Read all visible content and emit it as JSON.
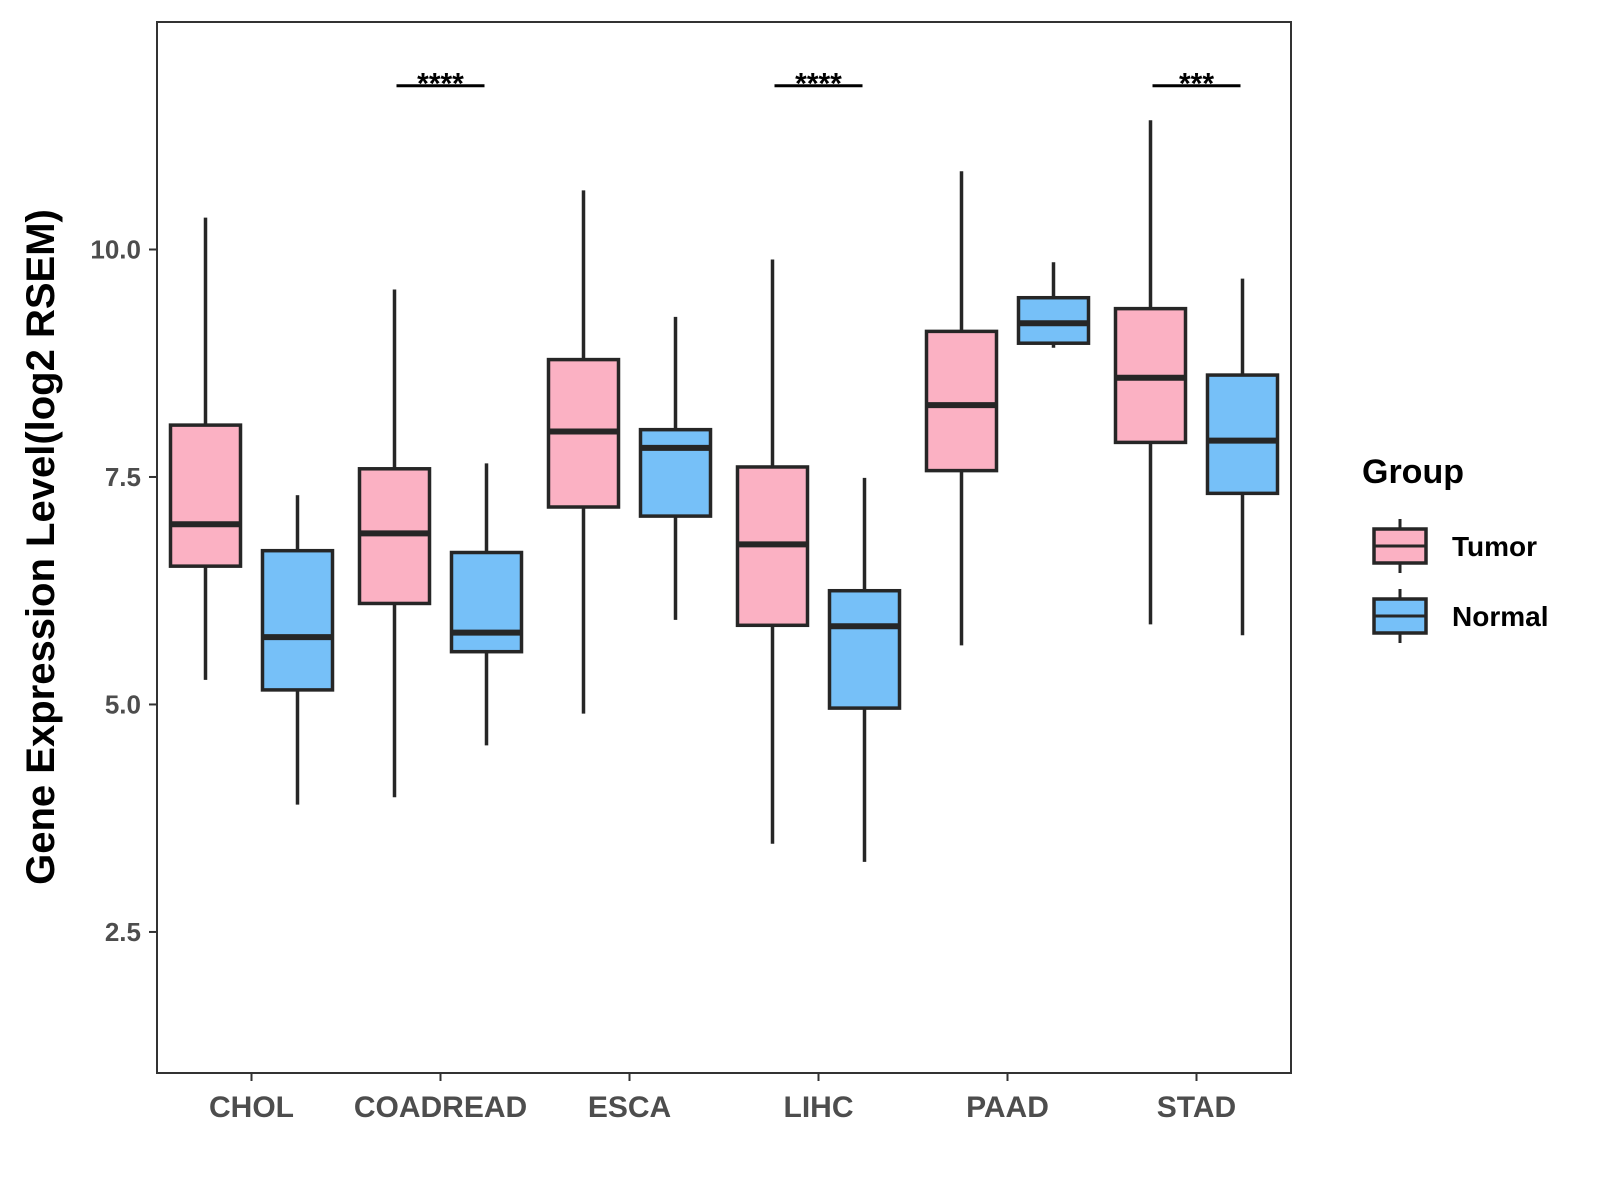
{
  "chart_data": {
    "type": "boxplot",
    "title": "",
    "xlabel": "",
    "ylabel": "Gene Expression Level(log2 RSEM)",
    "ylim": [
      0.95,
      12.5
    ],
    "yticks": [
      2.5,
      5.0,
      7.5,
      10.0
    ],
    "ytick_labels": [
      "2.5",
      "5.0",
      "7.5",
      "10.0"
    ],
    "categories": [
      "CHOL",
      "COADREAD",
      "ESCA",
      "LIHC",
      "PAAD",
      "STAD"
    ],
    "legend": {
      "title": "Group",
      "position": "right",
      "entries": [
        {
          "name": "Tumor",
          "color": "#fbb1c3"
        },
        {
          "name": "Normal",
          "color": "#76c0f8"
        }
      ]
    },
    "series": [
      {
        "name": "Tumor",
        "color": "#fbb1c3",
        "boxes": [
          {
            "category": "CHOL",
            "min": 5.27,
            "q1": 6.52,
            "median": 6.98,
            "q3": 8.07,
            "max": 10.35
          },
          {
            "category": "COADREAD",
            "min": 3.98,
            "q1": 6.11,
            "median": 6.88,
            "q3": 7.59,
            "max": 9.56
          },
          {
            "category": "ESCA",
            "min": 4.9,
            "q1": 7.17,
            "median": 8.0,
            "q3": 8.79,
            "max": 10.65
          },
          {
            "category": "LIHC",
            "min": 3.47,
            "q1": 5.87,
            "median": 6.76,
            "q3": 7.61,
            "max": 9.89
          },
          {
            "category": "PAAD",
            "min": 5.65,
            "q1": 7.57,
            "median": 8.29,
            "q3": 9.1,
            "max": 10.86
          },
          {
            "category": "STAD",
            "min": 5.88,
            "q1": 7.88,
            "median": 8.59,
            "q3": 9.35,
            "max": 11.42
          }
        ]
      },
      {
        "name": "Normal",
        "color": "#76c0f8",
        "boxes": [
          {
            "category": "CHOL",
            "min": 3.9,
            "q1": 5.16,
            "median": 5.74,
            "q3": 6.69,
            "max": 7.3
          },
          {
            "category": "COADREAD",
            "min": 4.55,
            "q1": 5.58,
            "median": 5.79,
            "q3": 6.67,
            "max": 7.65
          },
          {
            "category": "ESCA",
            "min": 5.93,
            "q1": 7.07,
            "median": 7.82,
            "q3": 8.02,
            "max": 9.26
          },
          {
            "category": "LIHC",
            "min": 3.27,
            "q1": 4.96,
            "median": 5.86,
            "q3": 6.25,
            "max": 7.49
          },
          {
            "category": "PAAD",
            "min": 8.92,
            "q1": 8.97,
            "median": 9.19,
            "q3": 9.47,
            "max": 9.86
          },
          {
            "category": "STAD",
            "min": 5.76,
            "q1": 7.32,
            "median": 7.9,
            "q3": 8.62,
            "max": 9.68
          }
        ]
      }
    ],
    "significance": [
      {
        "category": "COADREAD",
        "label": "****",
        "y": 11.8
      },
      {
        "category": "LIHC",
        "label": "****",
        "y": 11.8
      },
      {
        "category": "STAD",
        "label": "***",
        "y": 11.8
      }
    ]
  }
}
